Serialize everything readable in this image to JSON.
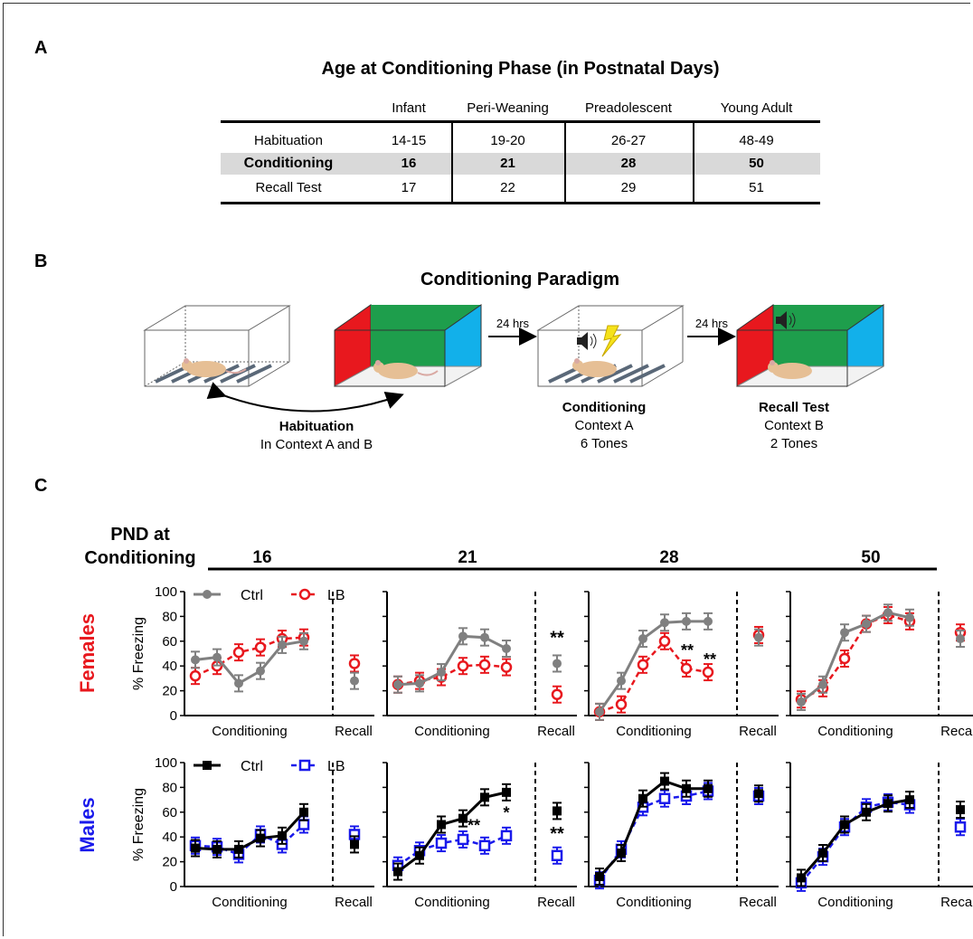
{
  "panelA": {
    "letter": "A",
    "title": "Age at Conditioning Phase (in Postnatal Days)",
    "columns": [
      "Infant",
      "Peri-Weaning",
      "Preadolescent",
      "Young Adult"
    ],
    "rows": [
      {
        "label": "Habituation",
        "values": [
          "14-15",
          "19-20",
          "26-27",
          "48-49"
        ]
      },
      {
        "label": "Conditioning",
        "values": [
          "16",
          "21",
          "28",
          "50"
        ]
      },
      {
        "label": "Recall Test",
        "values": [
          "17",
          "22",
          "29",
          "51"
        ]
      }
    ]
  },
  "panelB": {
    "letter": "B",
    "title": "Conditioning Paradigm",
    "arrow1": "24 hrs",
    "arrow2": "24 hrs",
    "habituation": {
      "name": "Habituation",
      "line1": "In Context A and B"
    },
    "conditioning": {
      "name": "Conditioning",
      "line1": "Context A",
      "line2": "6 Tones"
    },
    "recall": {
      "name": "Recall Test",
      "line1": "Context B",
      "line2": "2 Tones"
    }
  },
  "panelC": {
    "letter": "C",
    "pnd_label_1": "PND at",
    "pnd_label_2": "Conditioning",
    "row_females": "Females",
    "row_males": "Males",
    "legend_ctrl": "Ctrl",
    "legend_lb": "LB",
    "colors": {
      "female_ctrl": "#808080",
      "female_lb": "#e8181e",
      "male_ctrl": "#000000",
      "male_lb": "#1a1aeb"
    }
  },
  "chart_data": [
    {
      "type": "line",
      "group": "Females",
      "pnd": "16",
      "ylabel": "% Freezing",
      "xlabel_left": "Conditioning",
      "xlabel_right": "Recall",
      "ylim": [
        0,
        100
      ],
      "yticks": [
        0,
        20,
        40,
        60,
        80,
        100
      ],
      "series": [
        {
          "name": "Ctrl",
          "values": [
            45,
            47,
            26,
            36,
            57,
            60
          ],
          "recall": 28
        },
        {
          "name": "LB",
          "values": [
            32,
            40,
            51,
            55,
            62,
            63
          ],
          "recall": 42
        }
      ],
      "annotations": []
    },
    {
      "type": "line",
      "group": "Females",
      "pnd": "21",
      "ylabel": "",
      "xlabel_left": "Conditioning",
      "xlabel_right": "Recall",
      "ylim": [
        0,
        100
      ],
      "yticks": [
        0,
        20,
        40,
        60,
        80,
        100
      ],
      "series": [
        {
          "name": "Ctrl",
          "values": [
            25,
            26,
            35,
            64,
            63,
            54
          ],
          "recall": 42
        },
        {
          "name": "LB",
          "values": [
            25,
            28,
            31,
            40,
            41,
            39
          ],
          "recall": 17
        }
      ],
      "annotations": [
        "**"
      ]
    },
    {
      "type": "line",
      "group": "Females",
      "pnd": "28",
      "ylabel": "",
      "xlabel_left": "Conditioning",
      "xlabel_right": "Recall",
      "ylim": [
        0,
        100
      ],
      "yticks": [
        0,
        20,
        40,
        60,
        80,
        100
      ],
      "series": [
        {
          "name": "Ctrl",
          "values": [
            3,
            28,
            62,
            75,
            76,
            76
          ],
          "recall": 63
        },
        {
          "name": "LB",
          "values": [
            3,
            9,
            41,
            60,
            38,
            35
          ],
          "recall": 65
        }
      ],
      "annotations": [
        "**",
        "**"
      ]
    },
    {
      "type": "line",
      "group": "Females",
      "pnd": "50",
      "ylabel": "",
      "xlabel_left": "Conditioning",
      "xlabel_right": "Recall",
      "ylim": [
        0,
        100
      ],
      "yticks": [
        0,
        20,
        40,
        60,
        80,
        100
      ],
      "series": [
        {
          "name": "Ctrl",
          "values": [
            11,
            25,
            67,
            74,
            83,
            79
          ],
          "recall": 62
        },
        {
          "name": "LB",
          "values": [
            13,
            22,
            46,
            74,
            81,
            76
          ],
          "recall": 67
        }
      ],
      "annotations": []
    },
    {
      "type": "line",
      "group": "Males",
      "pnd": "16",
      "ylabel": "% Freezing",
      "xlabel_left": "Conditioning",
      "xlabel_right": "Recall",
      "ylim": [
        0,
        100
      ],
      "yticks": [
        0,
        20,
        40,
        60,
        80,
        100
      ],
      "series": [
        {
          "name": "Ctrl",
          "values": [
            31,
            30,
            30,
            39,
            41,
            60
          ],
          "recall": 34
        },
        {
          "name": "LB",
          "values": [
            33,
            32,
            26,
            42,
            34,
            50
          ],
          "recall": 42
        }
      ],
      "annotations": []
    },
    {
      "type": "line",
      "group": "Males",
      "pnd": "21",
      "ylabel": "",
      "xlabel_left": "Conditioning",
      "xlabel_right": "Recall",
      "ylim": [
        0,
        100
      ],
      "yticks": [
        0,
        20,
        40,
        60,
        80,
        100
      ],
      "series": [
        {
          "name": "Ctrl",
          "values": [
            12,
            25,
            50,
            55,
            72,
            76
          ],
          "recall": 61
        },
        {
          "name": "LB",
          "values": [
            17,
            29,
            35,
            38,
            33,
            41
          ],
          "recall": 25
        }
      ],
      "annotations": [
        "**",
        "*",
        "**"
      ]
    },
    {
      "type": "line",
      "group": "Males",
      "pnd": "28",
      "ylabel": "",
      "xlabel_left": "Conditioning",
      "xlabel_right": "Recall",
      "ylim": [
        0,
        100
      ],
      "yticks": [
        0,
        20,
        40,
        60,
        80,
        100
      ],
      "series": [
        {
          "name": "Ctrl",
          "values": [
            8,
            27,
            71,
            85,
            79,
            79
          ],
          "recall": 75
        },
        {
          "name": "LB",
          "values": [
            5,
            30,
            64,
            71,
            73,
            77
          ],
          "recall": 73
        }
      ],
      "annotations": []
    },
    {
      "type": "line",
      "group": "Males",
      "pnd": "50",
      "ylabel": "",
      "xlabel_left": "Conditioning",
      "xlabel_right": "Recall",
      "ylim": [
        0,
        100
      ],
      "yticks": [
        0,
        20,
        40,
        60,
        80,
        100
      ],
      "series": [
        {
          "name": "Ctrl",
          "values": [
            7,
            27,
            50,
            60,
            67,
            70
          ],
          "recall": 62
        },
        {
          "name": "LB",
          "values": [
            3,
            24,
            48,
            64,
            68,
            66
          ],
          "recall": 48
        }
      ],
      "annotations": []
    }
  ]
}
